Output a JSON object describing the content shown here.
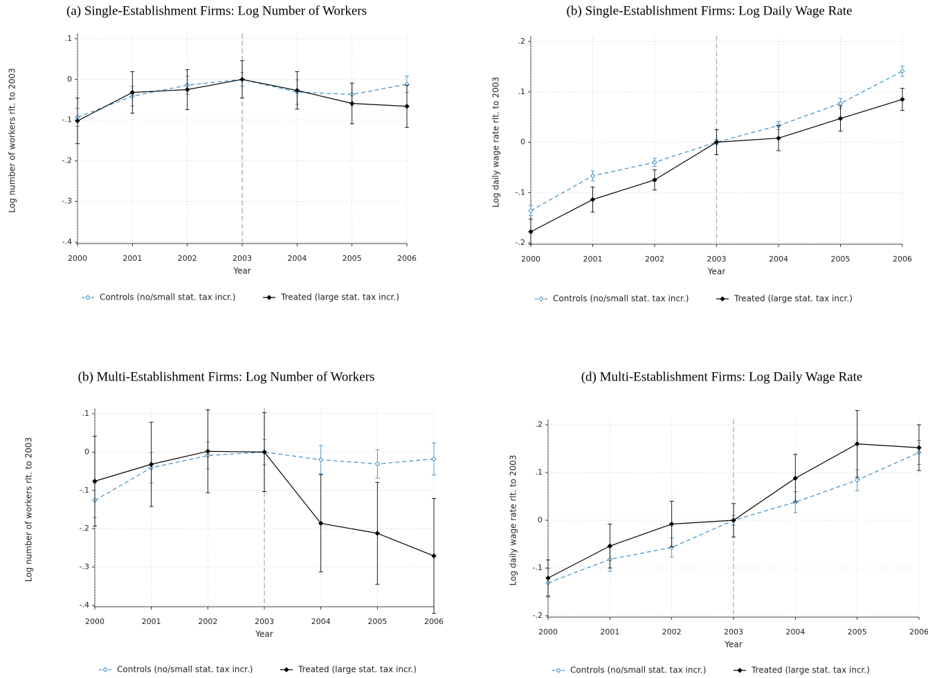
{
  "chart_data": [
    {
      "type": "line",
      "title": "(a) Single-Establishment Firms: Log Number of Workers",
      "x_label": "Year",
      "y_label": "Log number of workers rlt. to 2003",
      "x": [
        2000,
        2001,
        2002,
        2003,
        2004,
        2005,
        2006
      ],
      "xlim": [
        2000,
        2006
      ],
      "xticks": [
        2000,
        2001,
        2002,
        2003,
        2004,
        2005,
        2006
      ],
      "ylim": [
        -0.4,
        0.1
      ],
      "yticks": [
        {
          "value": -0.4,
          "label": "-.4"
        },
        {
          "value": -0.3,
          "label": "-.3"
        },
        {
          "value": -0.2,
          "label": "-.2"
        },
        {
          "value": -0.1,
          "label": "-.1"
        },
        0,
        {
          "value": 0.1,
          "label": ".1"
        }
      ],
      "grid": true,
      "vline": 2003,
      "series": [
        {
          "name": "Controls (no/small stat. tax incr.)",
          "color": "#3b8dc4",
          "line_style": "dashed",
          "marker": "hollow",
          "values": [
            -0.093,
            -0.041,
            -0.014,
            0,
            -0.031,
            -0.037,
            -0.012
          ],
          "errors": [
            0.022,
            0.024,
            0.022,
            0.017,
            0.03,
            0.028,
            0.02
          ]
        },
        {
          "name": "Treated (large stat. tax incr.)",
          "color": "#000000",
          "line_style": "solid",
          "marker": "filled",
          "values": [
            -0.102,
            -0.032,
            -0.025,
            0,
            -0.027,
            -0.059,
            -0.066
          ],
          "errors": [
            0.056,
            0.051,
            0.049,
            0.046,
            0.046,
            0.05,
            0.052
          ]
        }
      ]
    },
    {
      "type": "line",
      "title": "(b) Single-Establishment Firms: Log Daily Wage Rate",
      "x_label": "Year",
      "y_label": "Log daily wage rate rlt. to 2003",
      "x": [
        2000,
        2001,
        2002,
        2003,
        2004,
        2005,
        2006
      ],
      "xlim": [
        2000,
        2006
      ],
      "xticks": [
        2000,
        2001,
        2002,
        2003,
        2004,
        2005,
        2006
      ],
      "ylim": [
        -0.2,
        0.2
      ],
      "yticks": [
        {
          "value": -0.2,
          "label": "-.2"
        },
        {
          "value": -0.1,
          "label": "-.1"
        },
        0,
        {
          "value": 0.1,
          "label": ".1"
        },
        {
          "value": 0.2,
          "label": ".2"
        }
      ],
      "grid": true,
      "vline": 2003,
      "series": [
        {
          "name": "Controls (no/small stat. tax incr.)",
          "color": "#3b8dc4",
          "line_style": "dashed",
          "marker": "hollow",
          "values": [
            -0.136,
            -0.067,
            -0.04,
            0,
            0.033,
            0.077,
            0.141
          ],
          "errors": [
            0.01,
            0.01,
            0.008,
            0.005,
            0.008,
            0.01,
            0.01
          ]
        },
        {
          "name": "Treated (large stat. tax incr.)",
          "color": "#000000",
          "line_style": "solid",
          "marker": "filled",
          "values": [
            -0.178,
            -0.114,
            -0.075,
            0,
            0.008,
            0.047,
            0.085
          ],
          "errors": [
            0.025,
            0.025,
            0.02,
            0.025,
            0.025,
            0.025,
            0.022
          ]
        }
      ]
    },
    {
      "type": "line",
      "title": "(b) Multi-Establishment Firms: Log Number of Workers",
      "x_label": "Year",
      "y_label": "Log number of workers rlt. to 2003",
      "x": [
        2000,
        2001,
        2002,
        2003,
        2004,
        2005,
        2006
      ],
      "xlim": [
        2000,
        2006
      ],
      "xticks": [
        2000,
        2001,
        2002,
        2003,
        2004,
        2005,
        2006
      ],
      "ylim": [
        -0.4,
        0.1
      ],
      "yticks": [
        {
          "value": -0.4,
          "label": "-.4"
        },
        {
          "value": -0.3,
          "label": "-.3"
        },
        {
          "value": -0.2,
          "label": "-.2"
        },
        {
          "value": -0.1,
          "label": "-.1"
        },
        0,
        {
          "value": 0.1,
          "label": ".1"
        }
      ],
      "grid": true,
      "vline": 2003,
      "series": [
        {
          "name": "Controls (no/small stat. tax incr.)",
          "color": "#3b8dc4",
          "line_style": "dashed",
          "marker": "hollow",
          "values": [
            -0.126,
            -0.041,
            -0.009,
            0,
            -0.02,
            -0.031,
            -0.018
          ],
          "errors": [
            0.045,
            0.04,
            0.035,
            0.033,
            0.037,
            0.037,
            0.042
          ]
        },
        {
          "name": "Treated (large stat. tax incr.)",
          "color": "#000000",
          "line_style": "solid",
          "marker": "filled",
          "values": [
            -0.076,
            -0.032,
            0.002,
            0,
            -0.186,
            -0.212,
            -0.271
          ],
          "errors": [
            0.117,
            0.11,
            0.108,
            0.103,
            0.127,
            0.133,
            0.15
          ]
        }
      ]
    },
    {
      "type": "line",
      "title": "(d) Multi-Establishment Firms: Log Daily Wage Rate",
      "x_label": "Year",
      "y_label": "Log daily wage rate rlt. to 2003",
      "x": [
        2000,
        2001,
        2002,
        2003,
        2004,
        2005,
        2006
      ],
      "xlim": [
        2000,
        2006
      ],
      "xticks": [
        2000,
        2001,
        2002,
        2003,
        2004,
        2005,
        2006
      ],
      "ylim": [
        -0.2,
        0.2
      ],
      "yticks": [
        {
          "value": -0.2,
          "label": "-.2"
        },
        {
          "value": -0.1,
          "label": "-.1"
        },
        0,
        {
          "value": 0.1,
          "label": ".1"
        },
        {
          "value": 0.2,
          "label": ".2"
        }
      ],
      "grid": true,
      "vline": 2003,
      "series": [
        {
          "name": "Controls (no/small stat. tax incr.)",
          "color": "#3b8dc4",
          "line_style": "dashed",
          "marker": "hollow",
          "values": [
            -0.131,
            -0.082,
            -0.057,
            0,
            0.038,
            0.084,
            0.142
          ],
          "errors": [
            0.03,
            0.025,
            0.02,
            0.01,
            0.022,
            0.022,
            0.025
          ]
        },
        {
          "name": "Treated (large stat. tax incr.)",
          "color": "#000000",
          "line_style": "solid",
          "marker": "filled",
          "values": [
            -0.121,
            -0.054,
            -0.008,
            0,
            0.088,
            0.16,
            0.152
          ],
          "errors": [
            0.038,
            0.046,
            0.048,
            0.035,
            0.05,
            0.07,
            0.048
          ]
        }
      ]
    }
  ]
}
